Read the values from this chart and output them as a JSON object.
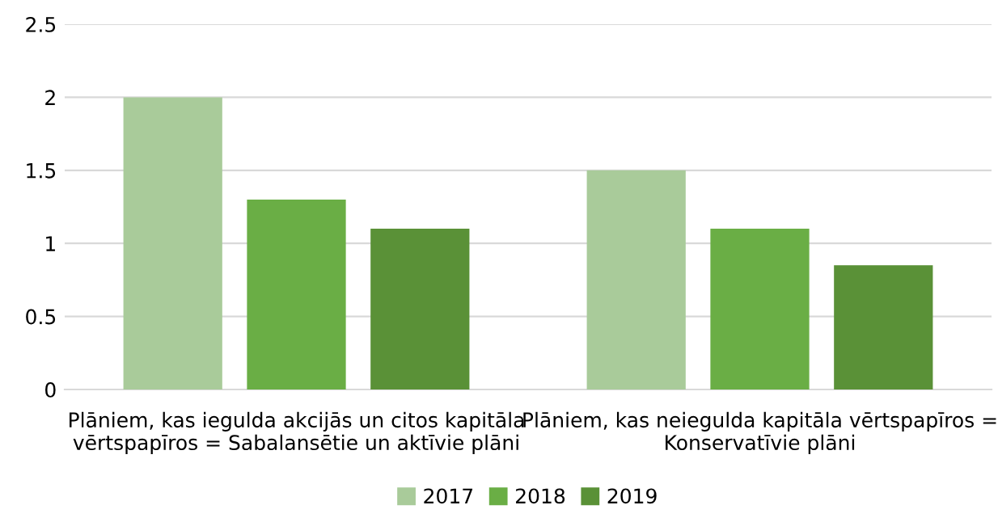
{
  "chart_data": {
    "type": "bar",
    "categories": [
      "Plāniem, kas iegulda akcijās un citos kapitāla\nvērtspapīros = Sabalansētie un aktīvie plāni",
      "Plāniem, kas neiegulda kapitāla vērtspapīros =\nKonservatīvie plāni"
    ],
    "series": [
      {
        "name": "2017",
        "color": "#a9cb9a",
        "values": [
          2.0,
          1.5
        ]
      },
      {
        "name": "2018",
        "color": "#6aae45",
        "values": [
          1.3,
          1.1
        ]
      },
      {
        "name": "2019",
        "color": "#5a9137",
        "values": [
          1.1,
          0.85
        ]
      }
    ],
    "ylim": [
      0,
      2.5
    ],
    "yticks": [
      0,
      0.5,
      1,
      1.5,
      2,
      2.5
    ],
    "grid": "y",
    "legend": "bottom"
  }
}
